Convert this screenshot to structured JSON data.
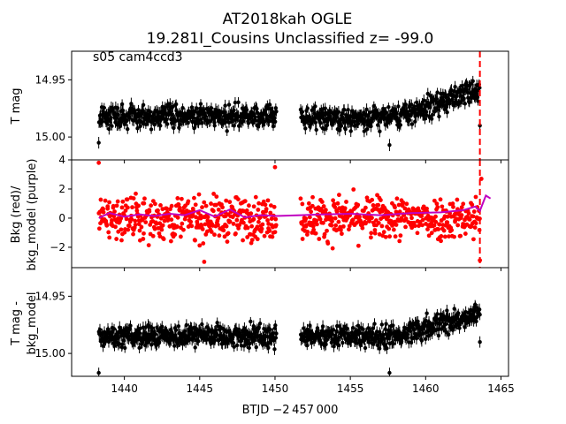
{
  "figure": {
    "title_line1": "AT2018kah  OGLE",
    "title_line2": "19.281I_Cousins Unclassified z= -99.0",
    "annotation": "s05 cam4ccd3",
    "xlabel": "BTJD −2 457 000"
  },
  "chart_data": [
    {
      "type": "scatter",
      "name": "panel-tmag",
      "ylabel": "T mag",
      "ylim": [
        15.02,
        14.925
      ],
      "inverted_y": true,
      "yticks": [
        14.95,
        15.0
      ],
      "ytick_labels": [
        "14.95",
        "15.00"
      ],
      "xlim": [
        1436.5,
        1465.5
      ],
      "series": [
        {
          "color": "#000000",
          "style": "errorbar points",
          "segments": [
            {
              "x": [
                1438.3,
                1450.1
              ],
              "y_level": 14.982,
              "scatter": 0.006
            },
            {
              "x": [
                1451.7,
                1458.0
              ],
              "y_level": 14.983,
              "scatter": 0.006
            },
            {
              "x": [
                1458.0,
                1463.6
              ],
              "y_level": [
                14.983,
                14.958
              ],
              "scatter": 0.006
            }
          ],
          "outliers": [
            {
              "x": 1438.3,
              "y": 15.005
            },
            {
              "x": 1457.6,
              "y": 15.007
            },
            {
              "x": 1463.6,
              "y": 14.99
            }
          ]
        }
      ],
      "vline": {
        "x": 1463.6,
        "color": "#ff0000",
        "style": "dashed"
      }
    },
    {
      "type": "scatter",
      "name": "panel-bkg",
      "ylabel_line1": "Bkg (red)/",
      "ylabel_line2": "bkg_model (purple)",
      "ylim": [
        -3.4,
        4.0
      ],
      "yticks": [
        -2,
        0,
        2,
        4
      ],
      "ytick_labels": [
        "−2",
        "0",
        "2",
        "4"
      ],
      "xlim": [
        1436.5,
        1465.5
      ],
      "series": [
        {
          "color": "#ff0000",
          "style": "points",
          "segments": [
            {
              "x": [
                1438.3,
                1450.1
              ],
              "y_level": 0.0,
              "scatter": 0.9
            },
            {
              "x": [
                1451.7,
                1463.6
              ],
              "y_level": 0.0,
              "scatter": 0.9
            }
          ],
          "outliers": [
            {
              "x": 1438.3,
              "y": 3.8
            },
            {
              "x": 1445.3,
              "y": -3.0
            },
            {
              "x": 1450.0,
              "y": 3.5
            },
            {
              "x": 1463.6,
              "y": -2.9
            },
            {
              "x": 1463.7,
              "y": 2.7
            }
          ]
        },
        {
          "color": "#c000c0",
          "style": "line",
          "x": [
            1438.3,
            1439.0,
            1440.0,
            1441.0,
            1442.0,
            1443.0,
            1444.0,
            1445.0,
            1446.0,
            1447.0,
            1448.0,
            1449.0,
            1450.1,
            1451.7,
            1453.0,
            1455.0,
            1457.0,
            1459.0,
            1461.0,
            1462.5,
            1463.3,
            1463.6,
            1464.0,
            1464.3
          ],
          "y": [
            0.0,
            0.35,
            0.1,
            0.25,
            0.15,
            0.3,
            0.2,
            0.55,
            0.1,
            0.6,
            0.05,
            0.2,
            0.15,
            0.2,
            0.25,
            0.3,
            0.2,
            0.35,
            0.4,
            0.55,
            0.8,
            0.5,
            1.55,
            1.35
          ]
        }
      ]
    },
    {
      "type": "scatter",
      "name": "panel-tmag-bkgmodel",
      "ylabel_line1": "T mag -",
      "ylabel_line2": "bkg_model",
      "ylim": [
        15.02,
        14.925
      ],
      "inverted_y": true,
      "yticks": [
        14.95,
        15.0
      ],
      "ytick_labels": [
        "14.95",
        "15.00"
      ],
      "xlim": [
        1436.5,
        1465.5
      ],
      "xticks": [
        1440,
        1445,
        1450,
        1455,
        1460,
        1465
      ],
      "xtick_labels": [
        "1440",
        "1445",
        "1450",
        "1455",
        "1460",
        "1465"
      ],
      "series": [
        {
          "color": "#000000",
          "style": "errorbar points",
          "segments": [
            {
              "x": [
                1438.3,
                1450.1
              ],
              "y_level": 14.985,
              "scatter": 0.006
            },
            {
              "x": [
                1451.7,
                1458.0
              ],
              "y_level": 14.985,
              "scatter": 0.006
            },
            {
              "x": [
                1458.0,
                1463.6
              ],
              "y_level": [
                14.985,
                14.965
              ],
              "scatter": 0.006
            }
          ],
          "outliers": [
            {
              "x": 1438.3,
              "y": 15.017
            },
            {
              "x": 1457.6,
              "y": 15.017
            },
            {
              "x": 1463.6,
              "y": 14.99
            }
          ]
        }
      ]
    }
  ]
}
